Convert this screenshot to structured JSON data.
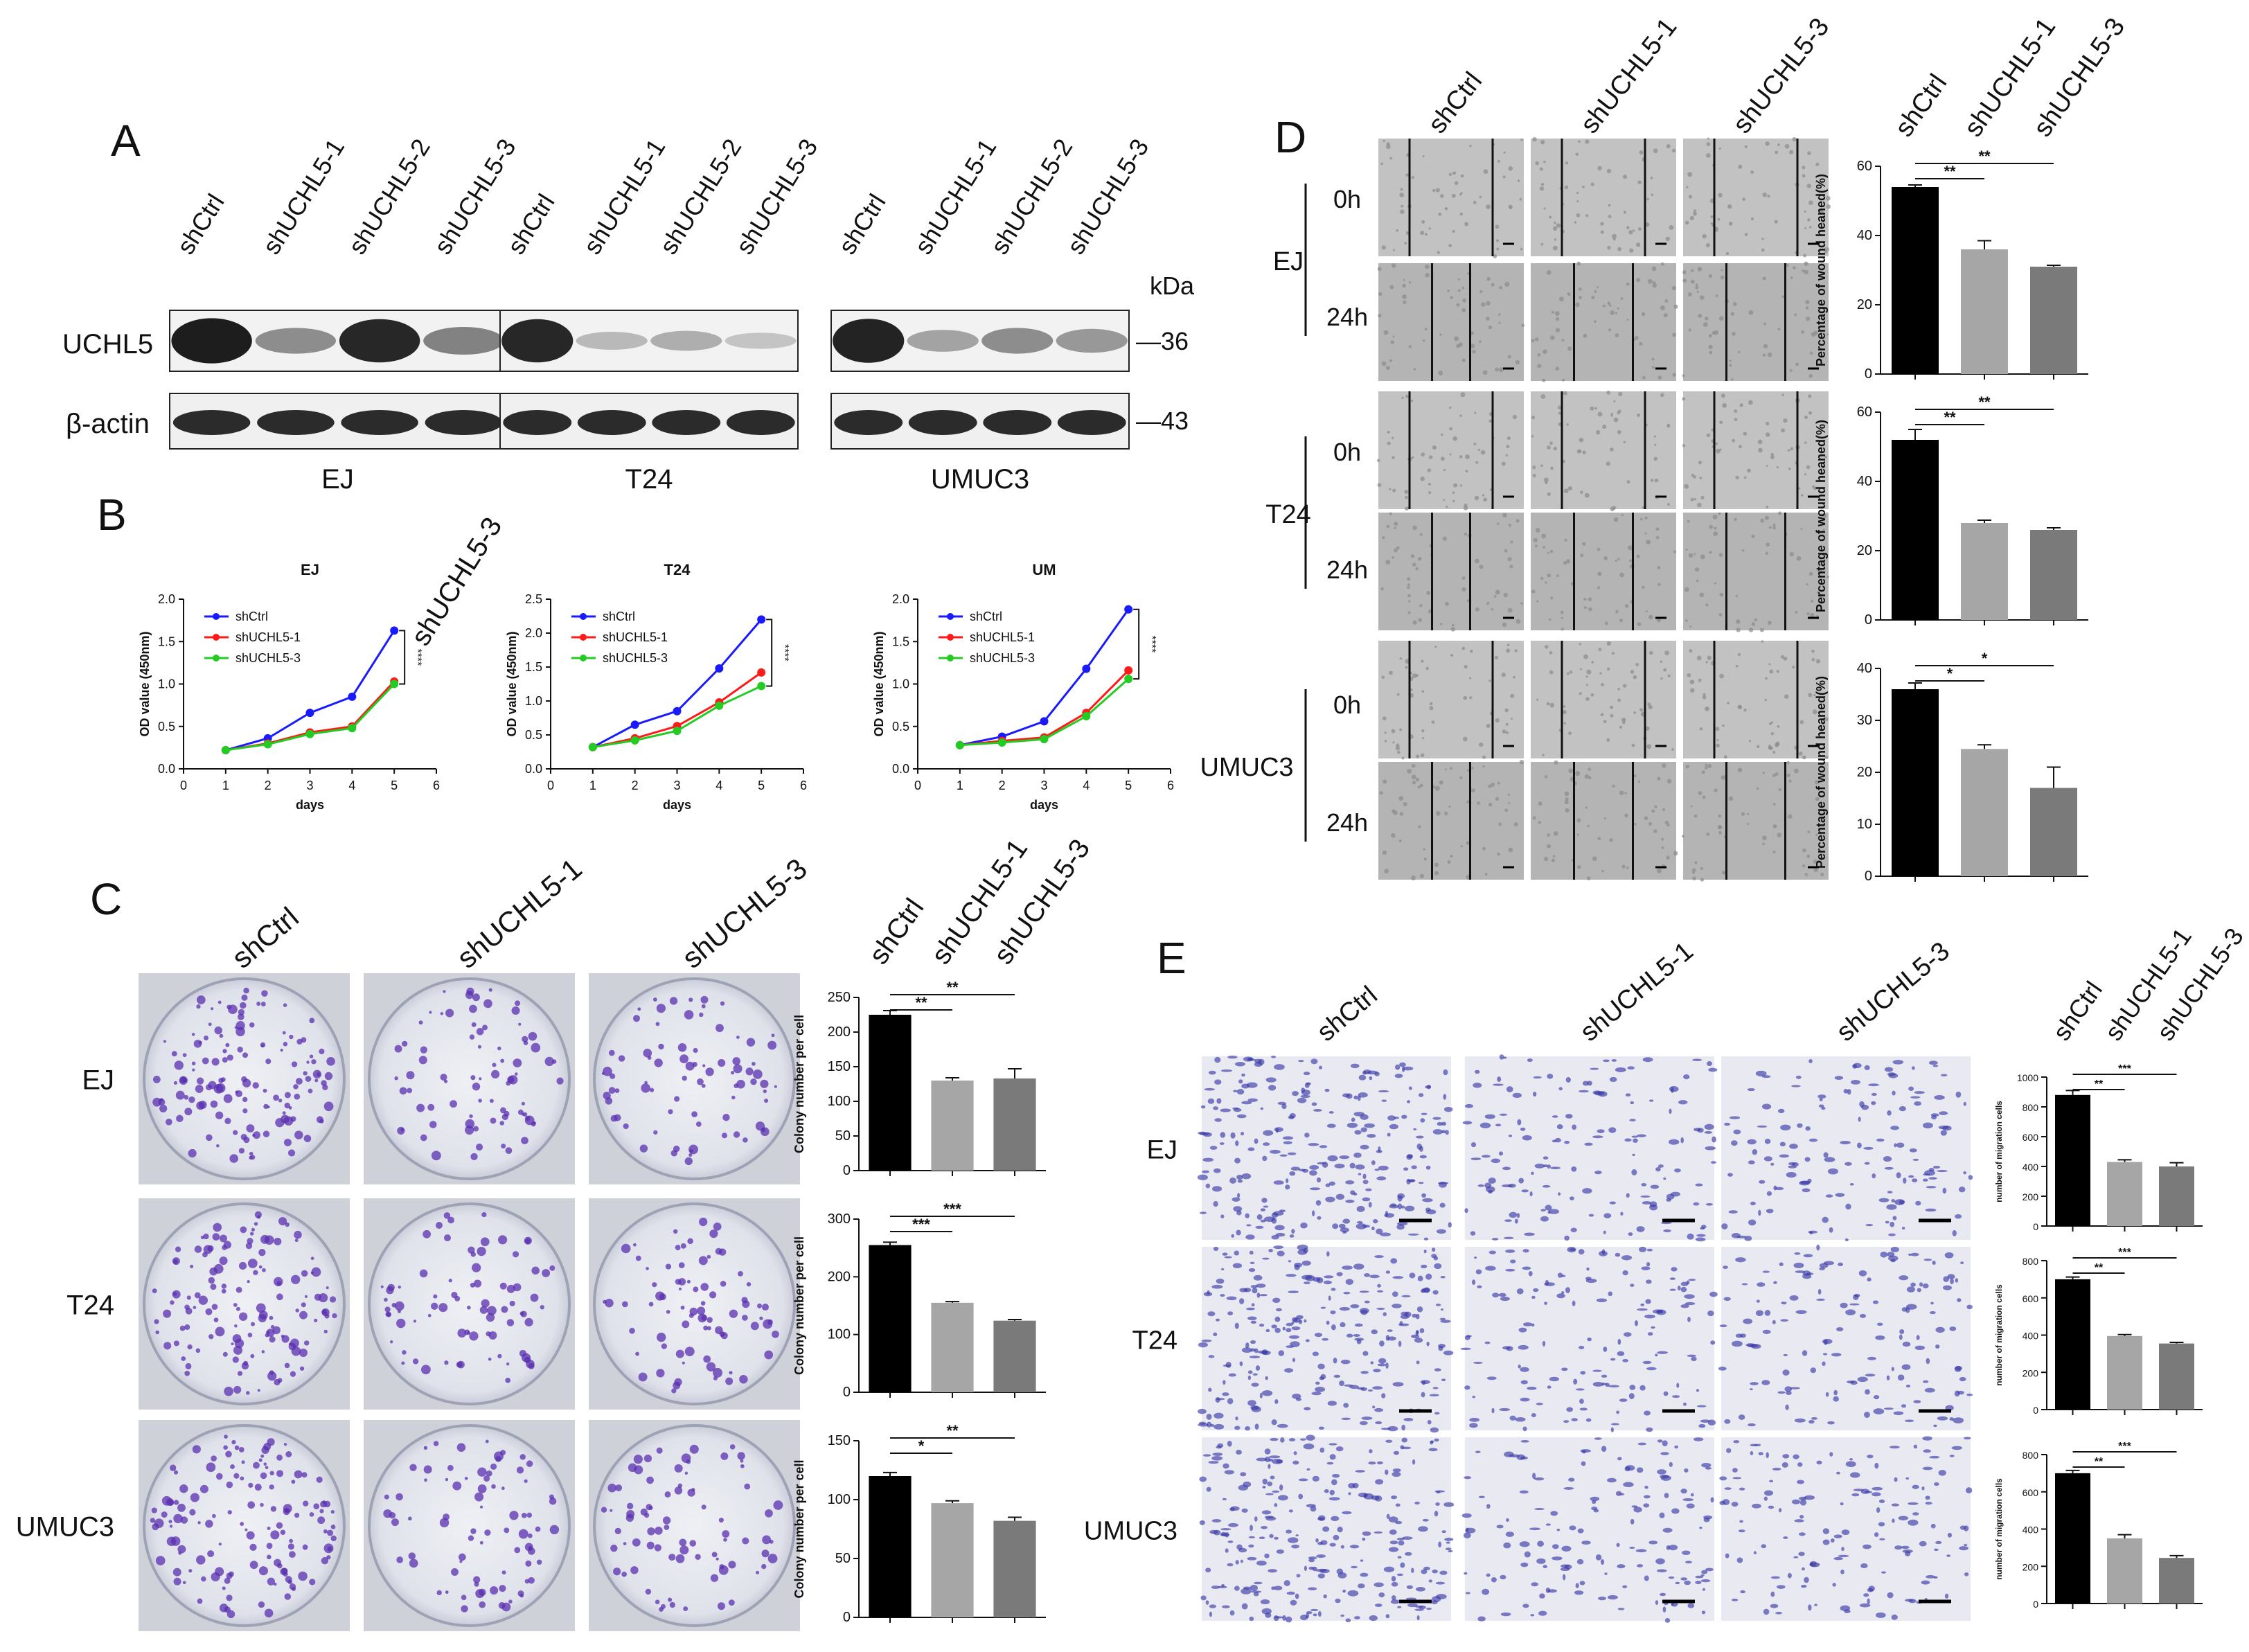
{
  "panel_letters": {
    "A": "A",
    "B": "B",
    "C": "C",
    "D": "D",
    "E": "E"
  },
  "samples": {
    "ctrl": "shCtrl",
    "sh1": "shUCHL5-1",
    "sh2": "shUCHL5-2",
    "sh3": "shUCHL5-3"
  },
  "cell_lines": [
    "EJ",
    "T24",
    "UMUC3"
  ],
  "panel_a": {
    "blot_labels": [
      "UCHL5",
      "β-actin"
    ],
    "kda_label": "kDa",
    "markers": [
      "—36",
      "—43"
    ],
    "ucHL5_intensity": [
      [
        0.95,
        0.45,
        0.9,
        0.5
      ],
      [
        0.9,
        0.25,
        0.3,
        0.2
      ],
      [
        0.92,
        0.35,
        0.45,
        0.4
      ]
    ]
  },
  "panel_b": {
    "stray_label": "shUCHL5-3",
    "titles": [
      "EJ",
      "T24",
      "UM"
    ],
    "ylabel": "OD value (450nm)",
    "xlabel": "days",
    "legend": [
      "shCtrl",
      "shUCHL5-1",
      "shUCHL5-3"
    ],
    "legend_um": [
      "shCtrl",
      "shUCHL5-1",
      "shUCHL5-3"
    ],
    "x_ticks": [
      "0",
      "1",
      "2",
      "3",
      "4",
      "5",
      "6"
    ],
    "y_ticks": [
      "0.0",
      "0.5",
      "1.0",
      "1.5",
      "2.0"
    ],
    "y_ticks_t24": [
      "0.0",
      "0.5",
      "1.0",
      "1.5",
      "2.0",
      "2.5"
    ],
    "stars": [
      "****",
      "****",
      "****"
    ]
  },
  "panel_c": {
    "ylabel": "Colony number per cell",
    "y_ticks": [
      [
        "0",
        "50",
        "100",
        "150",
        "200",
        "250"
      ],
      [
        "0",
        "100",
        "200",
        "300"
      ],
      [
        "0",
        "50",
        "100",
        "150"
      ]
    ],
    "sig": [
      [
        "**",
        "**"
      ],
      [
        "***",
        "***"
      ],
      [
        "*",
        "**"
      ]
    ]
  },
  "panel_d": {
    "times": [
      "0h",
      "24h"
    ],
    "ylabel": "Percentage of wound heaned(%)",
    "y_ticks": [
      [
        "0",
        "20",
        "40",
        "60"
      ],
      [
        "0",
        "20",
        "40",
        "60"
      ],
      [
        "0",
        "10",
        "20",
        "30",
        "40"
      ]
    ],
    "sig": [
      [
        "**",
        "**"
      ],
      [
        "**",
        "**"
      ],
      [
        "*",
        "*"
      ]
    ]
  },
  "panel_e": {
    "ylabel": "number of migration cells",
    "y_ticks": [
      [
        "0",
        "200",
        "400",
        "600",
        "800",
        "1000"
      ],
      [
        "0",
        "200",
        "400",
        "600",
        "800"
      ],
      [
        "0",
        "200",
        "400",
        "600",
        "800"
      ]
    ],
    "sig": [
      [
        "**",
        "***"
      ],
      [
        "**",
        "***"
      ],
      [
        "**",
        "***"
      ]
    ]
  },
  "chart_data": [
    {
      "type": "line",
      "title": "EJ",
      "xlabel": "days",
      "ylabel": "OD value (450nm)",
      "xlim": [
        0,
        6
      ],
      "ylim": [
        0,
        2.0
      ],
      "x": [
        1,
        2,
        3,
        4,
        5
      ],
      "series": [
        {
          "name": "shCtrl",
          "color": "#1a1aff",
          "values": [
            0.22,
            0.36,
            0.66,
            0.85,
            1.63
          ]
        },
        {
          "name": "shUCHL5-1",
          "color": "#ff1a1a",
          "values": [
            0.22,
            0.3,
            0.43,
            0.5,
            1.03
          ]
        },
        {
          "name": "shUCHL5-3",
          "color": "#22cc22",
          "values": [
            0.22,
            0.29,
            0.41,
            0.48,
            1.0
          ]
        }
      ]
    },
    {
      "type": "line",
      "title": "T24",
      "xlabel": "days",
      "ylabel": "OD value (450nm)",
      "xlim": [
        0,
        6
      ],
      "ylim": [
        0,
        2.5
      ],
      "x": [
        1,
        2,
        3,
        4,
        5
      ],
      "series": [
        {
          "name": "shCtrl",
          "color": "#1a1aff",
          "values": [
            0.32,
            0.65,
            0.85,
            1.48,
            2.2
          ]
        },
        {
          "name": "shUCHL5-1",
          "color": "#ff1a1a",
          "values": [
            0.32,
            0.45,
            0.63,
            0.98,
            1.42
          ]
        },
        {
          "name": "shUCHL5-3",
          "color": "#22cc22",
          "values": [
            0.32,
            0.42,
            0.56,
            0.93,
            1.22
          ]
        }
      ]
    },
    {
      "type": "line",
      "title": "UM",
      "xlabel": "days",
      "ylabel": "OD value (450nm)",
      "xlim": [
        0,
        6
      ],
      "ylim": [
        0,
        2.0
      ],
      "x": [
        1,
        2,
        3,
        4,
        5
      ],
      "series": [
        {
          "name": "shCtrl",
          "color": "#1a1aff",
          "values": [
            0.28,
            0.38,
            0.56,
            1.18,
            1.88
          ]
        },
        {
          "name": "shUCHL5-1",
          "color": "#ff1a1a",
          "values": [
            0.28,
            0.33,
            0.37,
            0.66,
            1.16
          ]
        },
        {
          "name": "shUCHL5-3",
          "color": "#22cc22",
          "values": [
            0.28,
            0.31,
            0.35,
            0.62,
            1.06
          ]
        }
      ]
    },
    {
      "type": "bar",
      "panel": "C",
      "cell_line": "EJ",
      "ylabel": "Colony number per cell",
      "ylim": [
        0,
        250
      ],
      "categories": [
        "shCtrl",
        "shUCHL5-1",
        "shUCHL5-3"
      ],
      "values": [
        225,
        130,
        133
      ],
      "errors": [
        6,
        4,
        14
      ]
    },
    {
      "type": "bar",
      "panel": "C",
      "cell_line": "T24",
      "ylabel": "Colony number per cell",
      "ylim": [
        0,
        300
      ],
      "categories": [
        "shCtrl",
        "shUCHL5-1",
        "shUCHL5-3"
      ],
      "values": [
        255,
        155,
        124
      ],
      "errors": [
        5,
        2,
        2
      ]
    },
    {
      "type": "bar",
      "panel": "C",
      "cell_line": "UMUC3",
      "ylabel": "Colony number per cell",
      "ylim": [
        0,
        150
      ],
      "categories": [
        "shCtrl",
        "shUCHL5-1",
        "shUCHL5-3"
      ],
      "values": [
        120,
        97,
        82
      ],
      "errors": [
        3,
        2,
        3
      ]
    },
    {
      "type": "bar",
      "panel": "D",
      "cell_line": "EJ",
      "ylabel": "Percentage of wound heaned(%)",
      "ylim": [
        0,
        60
      ],
      "categories": [
        "shCtrl",
        "shUCHL5-1",
        "shUCHL5-3"
      ],
      "values": [
        54,
        36,
        31
      ],
      "errors": [
        0.6,
        2.5,
        0.4
      ]
    },
    {
      "type": "bar",
      "panel": "D",
      "cell_line": "T24",
      "ylabel": "Percentage of wound heaned(%)",
      "ylim": [
        0,
        60
      ],
      "categories": [
        "shCtrl",
        "shUCHL5-1",
        "shUCHL5-3"
      ],
      "values": [
        52,
        28,
        26
      ],
      "errors": [
        3,
        0.8,
        0.6
      ]
    },
    {
      "type": "bar",
      "panel": "D",
      "cell_line": "UMUC3",
      "ylabel": "Percentage of wound heaned(%)",
      "ylim": [
        0,
        40
      ],
      "categories": [
        "shCtrl",
        "shUCHL5-1",
        "shUCHL5-3"
      ],
      "values": [
        36,
        24.5,
        17
      ],
      "errors": [
        1.2,
        0.8,
        4
      ]
    },
    {
      "type": "bar",
      "panel": "E",
      "cell_line": "EJ",
      "ylabel": "number of migration cells",
      "ylim": [
        0,
        1000
      ],
      "categories": [
        "shCtrl",
        "shUCHL5-1",
        "shUCHL5-3"
      ],
      "values": [
        880,
        430,
        400
      ],
      "errors": [
        30,
        15,
        25
      ]
    },
    {
      "type": "bar",
      "panel": "E",
      "cell_line": "T24",
      "ylabel": "number of migration cells",
      "ylim": [
        0,
        800
      ],
      "categories": [
        "shCtrl",
        "shUCHL5-1",
        "shUCHL5-3"
      ],
      "values": [
        700,
        395,
        355
      ],
      "errors": [
        12,
        8,
        6
      ]
    },
    {
      "type": "bar",
      "panel": "E",
      "cell_line": "UMUC3",
      "ylabel": "number of migration cells",
      "ylim": [
        0,
        800
      ],
      "categories": [
        "shCtrl",
        "shUCHL5-1",
        "shUCHL5-3"
      ],
      "values": [
        700,
        350,
        245
      ],
      "errors": [
        15,
        20,
        12
      ]
    }
  ]
}
